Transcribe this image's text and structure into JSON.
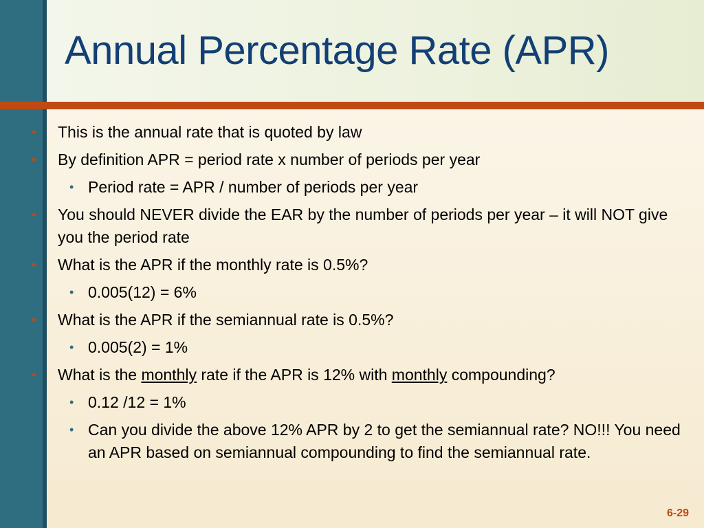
{
  "slide": {
    "title": "Annual Percentage Rate (APR)",
    "number": "6-29",
    "colors": {
      "title": "#123f75",
      "accent": "#c04a13",
      "sidebar": "#2f6e80"
    }
  },
  "bullets": {
    "b1": "This is the annual rate that is quoted by law",
    "b2": "By definition APR = period rate x number of periods per year",
    "b2_1": "Period rate = APR / number of periods per year",
    "b3": "You should NEVER divide the EAR by the number of periods per year – it will NOT give you the period rate",
    "b4": "What is the APR if the monthly rate is 0.5%?",
    "b4_1": "0.005(12) = 6%",
    "b5": "What is the APR if the semiannual rate is 0.5%?",
    "b5_1": "0.005(2) = 1%",
    "b6": {
      "p1": "What is the ",
      "u1": "monthly",
      "p2": " rate if the APR is 12% with ",
      "u2": "monthly",
      "p3": " compounding?"
    },
    "b6_1": "0.12 /12 = 1%",
    "b6_2": "Can you divide the above 12% APR by 2 to get the semiannual rate? NO!!! You need an APR based on semiannual compounding to find the semiannual rate."
  }
}
